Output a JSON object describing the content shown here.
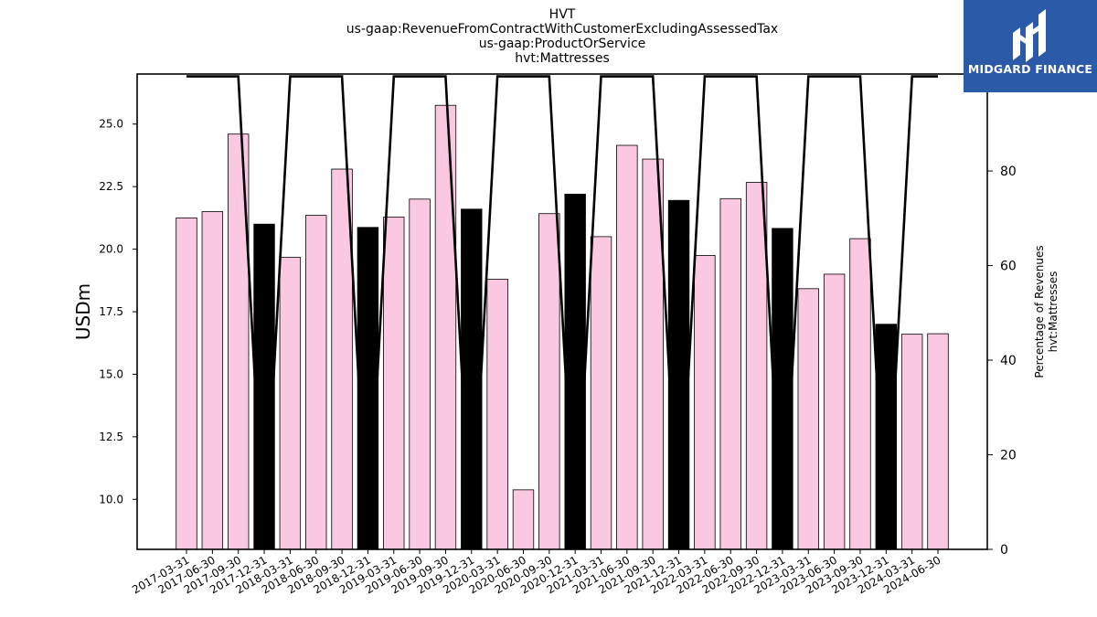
{
  "logo": {
    "text": "MIDGARD FINANCE",
    "bg_color": "#2b5aa8"
  },
  "chart_data": {
    "type": "bar",
    "title": [
      "HVT",
      "us-gaap:RevenueFromContractWithCustomerExcludingAssessedTax",
      "us-gaap:ProductOrService",
      "hvt:Mattresses"
    ],
    "ylabel": "USDm",
    "y2label": [
      "Percentage of Revenues",
      "hvt:Mattresses"
    ],
    "ylim": [
      8.0,
      27.0
    ],
    "y2lim": [
      0,
      100.5
    ],
    "yticks": [
      10.0,
      12.5,
      15.0,
      17.5,
      20.0,
      22.5,
      25.0
    ],
    "y2ticks": [
      0,
      20,
      40,
      60,
      80,
      100
    ],
    "categories": [
      "2017-03-31",
      "2017-06-30",
      "2017-09-30",
      "2017-12-31",
      "2018-03-31",
      "2018-06-30",
      "2018-09-30",
      "2018-12-31",
      "2019-03-31",
      "2019-06-30",
      "2019-09-30",
      "2019-12-31",
      "2020-03-31",
      "2020-06-30",
      "2020-09-30",
      "2020-12-31",
      "2021-03-31",
      "2021-06-30",
      "2021-09-30",
      "2021-12-31",
      "2022-03-31",
      "2022-06-30",
      "2022-09-30",
      "2022-12-31",
      "2023-03-31",
      "2023-06-30",
      "2023-09-30",
      "2023-12-31",
      "2024-03-31",
      "2024-06-30"
    ],
    "values": [
      21.25,
      21.5,
      24.6,
      21.0,
      19.67,
      21.35,
      23.2,
      20.87,
      21.28,
      22.0,
      25.75,
      21.6,
      18.8,
      10.38,
      21.42,
      22.2,
      20.5,
      24.15,
      23.6,
      21.95,
      19.75,
      22.02,
      22.67,
      20.83,
      18.42,
      19.0,
      20.42,
      17.0,
      16.6,
      16.62
    ],
    "bar_colors": [
      "#fbc8e2",
      "#fbc8e2",
      "#fbc8e2",
      "#000000",
      "#fbc8e2",
      "#fbc8e2",
      "#fbc8e2",
      "#000000",
      "#fbc8e2",
      "#fbc8e2",
      "#fbc8e2",
      "#000000",
      "#fbc8e2",
      "#fbc8e2",
      "#fbc8e2",
      "#000000",
      "#fbc8e2",
      "#fbc8e2",
      "#fbc8e2",
      "#000000",
      "#fbc8e2",
      "#fbc8e2",
      "#fbc8e2",
      "#000000",
      "#fbc8e2",
      "#fbc8e2",
      "#fbc8e2",
      "#000000",
      "#fbc8e2",
      "#fbc8e2"
    ],
    "series": [
      {
        "axis": "right",
        "type": "line",
        "color": "#000000",
        "values": [
          100,
          100,
          100,
          0,
          100,
          100,
          100,
          0,
          100,
          100,
          100,
          0,
          100,
          100,
          100,
          0,
          100,
          100,
          100,
          0,
          100,
          100,
          100,
          0,
          100,
          100,
          100,
          0,
          100,
          100
        ]
      }
    ],
    "grid": false,
    "legend": "none"
  }
}
